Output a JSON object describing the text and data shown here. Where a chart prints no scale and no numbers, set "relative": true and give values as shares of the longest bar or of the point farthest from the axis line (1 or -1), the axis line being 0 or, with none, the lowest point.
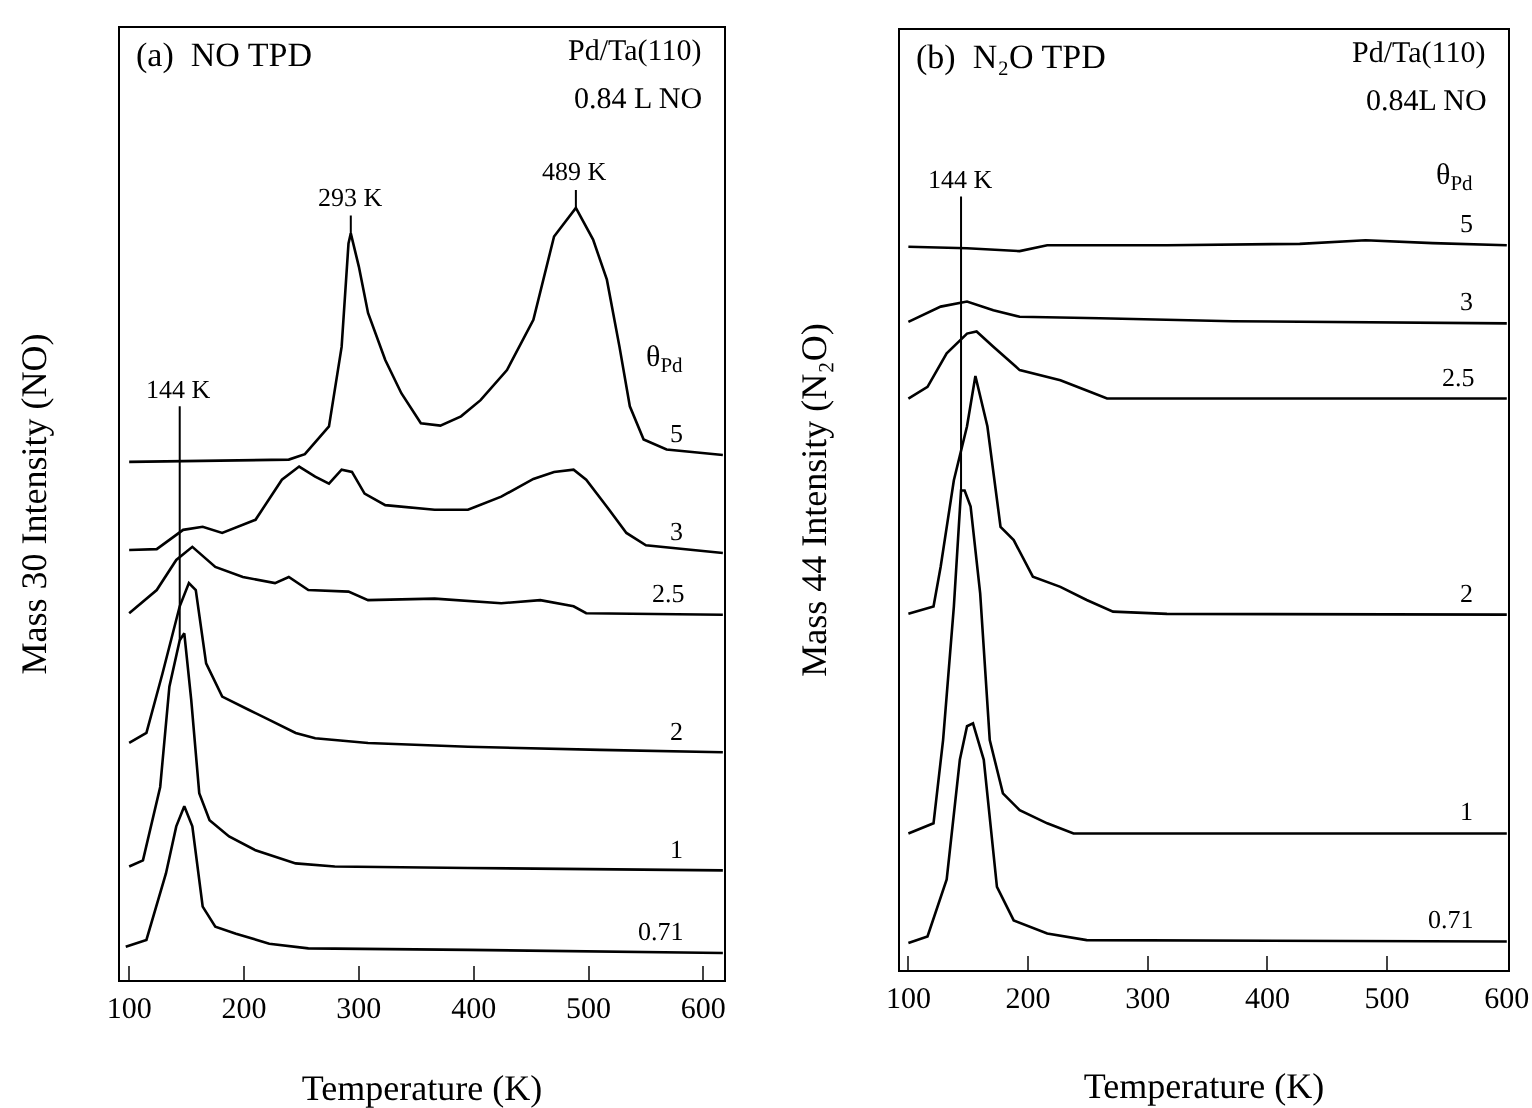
{
  "chart_data": [
    {
      "type": "line",
      "title": "(a)  NO TPD",
      "xlabel": "Temperature (K)",
      "ylabel": "Mass 30 Intensity (NO)",
      "legend_title": "θ$_{Pd}$",
      "relative": true,
      "xlim": [
        92,
        618
      ],
      "xticks": [
        100,
        200,
        300,
        400,
        500,
        600
      ],
      "series": [
        {
          "name": "5",
          "color": "#000000",
          "x": [
            100,
            239,
            253,
            274,
            285,
            291,
            293,
            300,
            308,
            323,
            337,
            354,
            371,
            389,
            406,
            429,
            452,
            470,
            489,
            504,
            516,
            527,
            536,
            548,
            568,
            617
          ],
          "values": [
            0.671,
            0.674,
            0.681,
            0.717,
            0.82,
            0.954,
            0.967,
            0.924,
            0.864,
            0.803,
            0.76,
            0.721,
            0.718,
            0.73,
            0.751,
            0.79,
            0.855,
            0.963,
            1.0,
            0.959,
            0.907,
            0.82,
            0.743,
            0.7,
            0.687,
            0.68
          ]
        },
        {
          "name": "3",
          "color": "#000000",
          "x": [
            100,
            124,
            147,
            164,
            181,
            210,
            233,
            248,
            262,
            274,
            285,
            294,
            305,
            323,
            366,
            395,
            424,
            452,
            470,
            487,
            498,
            516,
            533,
            550,
            617
          ],
          "values": [
            0.557,
            0.558,
            0.583,
            0.587,
            0.579,
            0.596,
            0.648,
            0.665,
            0.652,
            0.643,
            0.661,
            0.658,
            0.63,
            0.615,
            0.609,
            0.609,
            0.626,
            0.649,
            0.658,
            0.661,
            0.648,
            0.613,
            0.579,
            0.563,
            0.553
          ]
        },
        {
          "name": "2.5",
          "color": "#000000",
          "x": [
            100,
            124,
            141,
            155,
            175,
            199,
            227,
            239,
            256,
            291,
            308,
            366,
            424,
            458,
            487,
            498,
            617
          ],
          "values": [
            0.475,
            0.505,
            0.544,
            0.561,
            0.535,
            0.522,
            0.514,
            0.522,
            0.505,
            0.503,
            0.492,
            0.494,
            0.488,
            0.492,
            0.484,
            0.475,
            0.473
          ]
        },
        {
          "name": "2",
          "color": "#000000",
          "x": [
            100,
            115,
            129,
            144,
            152,
            158,
            167,
            181,
            204,
            222,
            245,
            262,
            308,
            395,
            510,
            617
          ],
          "values": [
            0.307,
            0.32,
            0.397,
            0.484,
            0.514,
            0.505,
            0.41,
            0.367,
            0.35,
            0.337,
            0.32,
            0.313,
            0.307,
            0.302,
            0.298,
            0.295
          ]
        },
        {
          "name": "1",
          "color": "#000000",
          "x": [
            100,
            112,
            127,
            135,
            144,
            148,
            154,
            161,
            170,
            187,
            210,
            245,
            279,
            395,
            617
          ],
          "values": [
            0.147,
            0.155,
            0.25,
            0.38,
            0.44,
            0.449,
            0.363,
            0.242,
            0.207,
            0.186,
            0.168,
            0.151,
            0.147,
            0.145,
            0.142
          ]
        },
        {
          "name": "0.71",
          "color": "#000000",
          "x": [
            97,
            115,
            132,
            141,
            148,
            155,
            164,
            175,
            193,
            222,
            256,
            395,
            617
          ],
          "values": [
            0.043,
            0.052,
            0.138,
            0.199,
            0.225,
            0.199,
            0.095,
            0.069,
            0.06,
            0.047,
            0.041,
            0.039,
            0.035
          ]
        }
      ],
      "annotations": [
        {
          "text": "144 K",
          "x": 144,
          "y": 0.44
        },
        {
          "text": "293 K",
          "x": 293,
          "y": 0.967
        },
        {
          "text": "489 K",
          "x": 489,
          "y": 1.0
        },
        "Pd/Ta(110)",
        "0.84 L NO"
      ]
    },
    {
      "type": "line",
      "title": "(b)  N₂O TPD",
      "xlabel": "Temperature (K)",
      "ylabel": "Mass 44 Intensity (N₂O)",
      "legend_title": "θ$_{Pd}$",
      "relative": true,
      "xlim": [
        93,
        601
      ],
      "xticks": [
        100,
        200,
        300,
        400,
        500,
        600
      ],
      "series": [
        {
          "name": "5",
          "color": "#000000",
          "x": [
            100,
            149,
            193,
            216,
            316,
            427,
            482,
            538,
            600
          ],
          "values": [
            0.991,
            0.989,
            0.985,
            0.993,
            0.993,
            0.995,
            1.0,
            0.996,
            0.993
          ]
        },
        {
          "name": "3",
          "color": "#000000",
          "x": [
            100,
            127,
            149,
            171,
            193,
            260,
            371,
            600
          ],
          "values": [
            0.888,
            0.909,
            0.916,
            0.904,
            0.895,
            0.893,
            0.889,
            0.886
          ]
        },
        {
          "name": "2.5",
          "color": "#000000",
          "x": [
            100,
            116,
            132,
            149,
            157,
            171,
            193,
            227,
            249,
            266,
            371,
            600
          ],
          "values": [
            0.783,
            0.799,
            0.845,
            0.872,
            0.875,
            0.854,
            0.822,
            0.808,
            0.794,
            0.783,
            0.783,
            0.783
          ]
        },
        {
          "name": "2",
          "color": "#000000",
          "x": [
            100,
            121,
            127,
            138,
            149,
            156,
            166,
            177,
            188,
            204,
            227,
            249,
            271,
            316,
            600
          ],
          "values": [
            0.488,
            0.498,
            0.553,
            0.671,
            0.745,
            0.814,
            0.745,
            0.607,
            0.589,
            0.539,
            0.525,
            0.507,
            0.491,
            0.488,
            0.487
          ]
        },
        {
          "name": "1",
          "color": "#000000",
          "x": [
            100,
            121,
            129,
            138,
            144,
            147,
            152,
            160,
            168,
            179,
            193,
            216,
            238,
            600
          ],
          "values": [
            0.187,
            0.201,
            0.315,
            0.498,
            0.657,
            0.657,
            0.635,
            0.516,
            0.315,
            0.242,
            0.219,
            0.201,
            0.187,
            0.187
          ]
        },
        {
          "name": "0.71",
          "color": "#000000",
          "x": [
            100,
            116,
            132,
            143,
            149,
            154,
            163,
            174,
            188,
            216,
            249,
            600
          ],
          "values": [
            0.037,
            0.046,
            0.124,
            0.288,
            0.334,
            0.338,
            0.288,
            0.114,
            0.068,
            0.05,
            0.041,
            0.039
          ]
        }
      ],
      "annotations": [
        {
          "text": "144 K",
          "x": 144,
          "y": 0.657
        },
        "Pd/Ta(110)",
        "0.84L NO"
      ]
    }
  ]
}
